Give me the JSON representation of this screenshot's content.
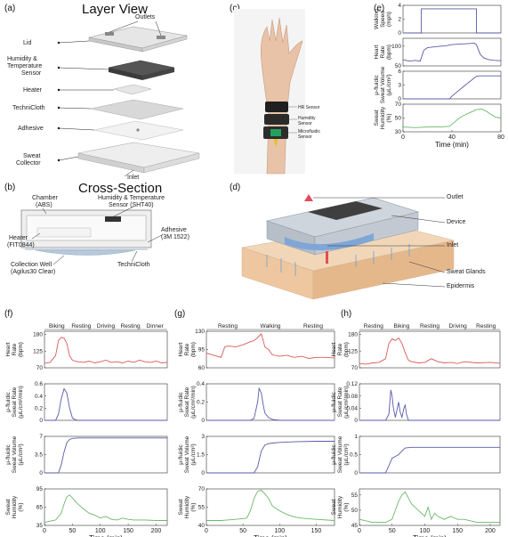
{
  "panels": {
    "a": {
      "letter": "(a)",
      "title": "Layer View",
      "labels": [
        "Outlets",
        "Lid",
        "Humidity &",
        "Temperature",
        "Sensor",
        "Heater",
        "TechniCloth",
        "Adhesive",
        "Sweat",
        "Collector",
        "Inlet"
      ]
    },
    "b": {
      "letter": "(b)",
      "title": "Cross-Section",
      "labels": [
        "Chamber",
        "(ABS)",
        "Humidity & Temperature",
        "Sensor (SHT40)",
        "Heater",
        "(FIT0844)",
        "Adhesive",
        "(3M 1522)",
        "Collection Well",
        "(Agilus30 Clear)",
        "TechniCloth"
      ]
    },
    "c": {
      "letter": "(c)",
      "labels": [
        "HR Sensor",
        "Humidity",
        "Sensor",
        "Microfluidic",
        "Sensor"
      ]
    },
    "d": {
      "letter": "(d)",
      "labels": [
        "Outlet",
        "Device",
        "Inlet",
        "Sweat Glands",
        "Epidermis"
      ]
    },
    "e": {
      "letter": "(e)"
    },
    "f": {
      "letter": "(f)",
      "activities": [
        "Biking",
        "Resting",
        "Driving",
        "Resting",
        "Dinner"
      ]
    },
    "g": {
      "letter": "(g)",
      "activities": [
        "Resting",
        "Walking",
        "Resting"
      ]
    },
    "h": {
      "letter": "(h)",
      "activities": [
        "Resting",
        "Biking",
        "Resting",
        "Driving",
        "Resting"
      ]
    }
  },
  "chart_data": [
    {
      "type": "line",
      "panel": "e",
      "xlabel": "Time (min)",
      "xlim": [
        0,
        80
      ],
      "xticks": [
        "0",
        "40",
        "80"
      ],
      "series": [
        {
          "ylabel": [
            "Walking",
            "Speed",
            "(mph)"
          ],
          "ylim": [
            0,
            4
          ],
          "yticks": [
            "0",
            "2",
            "4"
          ],
          "color": "#5a5aa8",
          "x": [
            0,
            15,
            15,
            60,
            60,
            80
          ],
          "y": [
            0,
            0,
            3.5,
            3.5,
            0,
            0
          ]
        },
        {
          "ylabel": [
            "Heart",
            "Rate",
            "(bpm)"
          ],
          "ylim": [
            50,
            120
          ],
          "yticks": [
            "50",
            "100"
          ],
          "color": "#5a5aa8",
          "x": [
            0,
            5,
            10,
            14,
            17,
            20,
            25,
            30,
            35,
            40,
            45,
            50,
            55,
            58,
            60,
            63,
            66,
            70,
            75,
            80
          ],
          "y": [
            66,
            62,
            64,
            62,
            90,
            96,
            98,
            100,
            101,
            104,
            105,
            106,
            107,
            108,
            104,
            80,
            70,
            66,
            64,
            63
          ]
        },
        {
          "ylabel": [
            "μ-fluidic",
            "Sweat Volume",
            "(μL/cm²)"
          ],
          "ylim": [
            0,
            6
          ],
          "yticks": [
            "0",
            "3",
            "6"
          ],
          "color": "#5a5aa8",
          "x": [
            0,
            38,
            40,
            50,
            60,
            62,
            80
          ],
          "y": [
            0,
            0,
            0.6,
            2.8,
            4.9,
            5.0,
            5.0
          ]
        },
        {
          "ylabel": [
            "Sweat",
            "Humidity",
            "(%)"
          ],
          "ylim": [
            30,
            70
          ],
          "yticks": [
            "30",
            "50",
            "70"
          ],
          "color": "#6ab86a",
          "x": [
            0,
            10,
            20,
            30,
            38,
            42,
            46,
            50,
            55,
            60,
            64,
            68,
            72,
            76,
            80
          ],
          "y": [
            37,
            36,
            37,
            37,
            38,
            44,
            50,
            54,
            58,
            62,
            63,
            60,
            55,
            51,
            50
          ]
        }
      ]
    },
    {
      "type": "line",
      "panel": "f",
      "xlabel": "Time (min)",
      "xlim": [
        0,
        220
      ],
      "xticks": [
        "0",
        "50",
        "100",
        "150",
        "200"
      ],
      "series": [
        {
          "ylabel": [
            "Heart",
            "Rate",
            "(bpm)"
          ],
          "ylim": [
            70,
            190
          ],
          "yticks": [
            "70",
            "125",
            "180"
          ],
          "color": "#d85a5a",
          "x": [
            0,
            10,
            20,
            25,
            30,
            35,
            40,
            45,
            50,
            55,
            60,
            70,
            80,
            90,
            100,
            110,
            120,
            130,
            140,
            150,
            160,
            170,
            180,
            190,
            200,
            210,
            220
          ],
          "y": [
            85,
            88,
            110,
            160,
            170,
            168,
            150,
            110,
            95,
            92,
            90,
            88,
            92,
            86,
            90,
            95,
            88,
            90,
            86,
            92,
            88,
            95,
            90,
            88,
            92,
            86,
            88
          ]
        },
        {
          "ylabel": [
            "μ-fluidic",
            "Sweat Rate",
            "(μL/cm²/min)"
          ],
          "ylim": [
            0,
            0.6
          ],
          "yticks": [
            "0",
            "0.2",
            "0.4",
            "0.6"
          ],
          "color": "#5a5aa8",
          "x": [
            0,
            20,
            25,
            30,
            35,
            40,
            45,
            50,
            55,
            60,
            80,
            120,
            160,
            220
          ],
          "y": [
            0,
            0,
            0.1,
            0.35,
            0.52,
            0.45,
            0.2,
            0.04,
            0.01,
            0,
            0,
            0,
            0,
            0
          ]
        },
        {
          "ylabel": [
            "μ-fluidic",
            "Sweat Volume",
            "(μL/cm²)"
          ],
          "ylim": [
            0,
            7
          ],
          "yticks": [
            "0",
            "3.5",
            "7"
          ],
          "color": "#5a5aa8",
          "x": [
            0,
            25,
            30,
            35,
            40,
            45,
            50,
            60,
            100,
            150,
            220
          ],
          "y": [
            0,
            0,
            1.5,
            4,
            5.8,
            6.4,
            6.6,
            6.7,
            6.7,
            6.7,
            6.7
          ]
        },
        {
          "ylabel": [
            "Sweat",
            "Humidity",
            "(%)"
          ],
          "ylim": [
            35,
            95
          ],
          "yticks": [
            "35",
            "65",
            "95"
          ],
          "color": "#6ab86a",
          "x": [
            0,
            10,
            20,
            30,
            35,
            40,
            45,
            50,
            60,
            70,
            80,
            90,
            100,
            110,
            120,
            130,
            140,
            150,
            160,
            180,
            200,
            220
          ],
          "y": [
            40,
            42,
            44,
            55,
            70,
            82,
            85,
            80,
            70,
            62,
            55,
            52,
            47,
            50,
            45,
            44,
            47,
            45,
            44,
            44,
            43,
            43
          ]
        }
      ]
    },
    {
      "type": "line",
      "panel": "g",
      "xlabel": "Time (min)",
      "xlim": [
        0,
        175
      ],
      "xticks": [
        "0",
        "50",
        "100",
        "150"
      ],
      "series": [
        {
          "ylabel": [
            "Heart",
            "Rate",
            "(bpm)"
          ],
          "ylim": [
            60,
            130
          ],
          "yticks": [
            "60",
            "95",
            "130"
          ],
          "color": "#d85a5a",
          "x": [
            0,
            10,
            20,
            25,
            30,
            40,
            50,
            60,
            65,
            70,
            75,
            80,
            85,
            90,
            100,
            110,
            120,
            130,
            140,
            150,
            160,
            175
          ],
          "y": [
            88,
            84,
            80,
            100,
            102,
            100,
            104,
            110,
            112,
            118,
            125,
            100,
            95,
            85,
            82,
            84,
            80,
            82,
            78,
            80,
            80,
            79
          ]
        },
        {
          "ylabel": [
            "μ-fluidic",
            "Sweat Rate",
            "(μL/cm²/min)"
          ],
          "ylim": [
            0,
            0.4
          ],
          "yticks": [
            "0",
            "0.2",
            "0.4"
          ],
          "color": "#5a5aa8",
          "x": [
            0,
            60,
            65,
            70,
            72,
            75,
            78,
            80,
            85,
            90,
            100,
            175
          ],
          "y": [
            0,
            0,
            0.02,
            0.2,
            0.35,
            0.3,
            0.15,
            0.08,
            0.03,
            0.01,
            0,
            0
          ]
        },
        {
          "ylabel": [
            "μ-fluidic",
            "Sweat Volume",
            "(μL/cm²)"
          ],
          "ylim": [
            0,
            3
          ],
          "yticks": [
            "0",
            "1.5",
            "3"
          ],
          "color": "#5a5aa8",
          "x": [
            0,
            65,
            70,
            75,
            80,
            85,
            90,
            100,
            120,
            150,
            175
          ],
          "y": [
            0,
            0,
            0.5,
            1.8,
            2.3,
            2.4,
            2.45,
            2.5,
            2.55,
            2.6,
            2.6
          ]
        },
        {
          "ylabel": [
            "Sweat",
            "Humidity",
            "(%)"
          ],
          "ylim": [
            40,
            70
          ],
          "yticks": [
            "40",
            "55",
            "70"
          ],
          "color": "#6ab86a",
          "x": [
            0,
            20,
            40,
            55,
            60,
            65,
            70,
            75,
            80,
            85,
            90,
            100,
            110,
            120,
            130,
            150,
            175
          ],
          "y": [
            44,
            44,
            45,
            46,
            52,
            62,
            68,
            69,
            66,
            62,
            56,
            52,
            49,
            47,
            46,
            45,
            44
          ]
        }
      ]
    },
    {
      "type": "line",
      "panel": "h",
      "xlabel": "Time (min)",
      "xlim": [
        0,
        215
      ],
      "xticks": [
        "0",
        "50",
        "100",
        "150",
        "200"
      ],
      "series": [
        {
          "ylabel": [
            "Heart",
            "Rate",
            "(bpm)"
          ],
          "ylim": [
            70,
            190
          ],
          "yticks": [
            "70",
            "125",
            "180"
          ],
          "color": "#d85a5a",
          "x": [
            0,
            10,
            20,
            30,
            40,
            45,
            50,
            55,
            60,
            65,
            70,
            75,
            80,
            90,
            100,
            110,
            120,
            130,
            140,
            150,
            160,
            180,
            200,
            215
          ],
          "y": [
            84,
            82,
            86,
            88,
            100,
            150,
            165,
            160,
            168,
            150,
            120,
            95,
            90,
            86,
            88,
            100,
            90,
            86,
            88,
            84,
            90,
            86,
            88,
            85
          ]
        },
        {
          "ylabel": [
            "μ-fluidic",
            "Sweat Rate",
            "(μL/cm²/min)"
          ],
          "ylim": [
            0,
            0.12
          ],
          "yticks": [
            "0",
            "0.04",
            "0.08",
            "0.12"
          ],
          "color": "#5a5aa8",
          "x": [
            0,
            40,
            45,
            48,
            50,
            52,
            55,
            58,
            60,
            62,
            65,
            68,
            70,
            72,
            75,
            80,
            215
          ],
          "y": [
            0,
            0,
            0.02,
            0.1,
            0.08,
            0.04,
            0.01,
            0.04,
            0.06,
            0.03,
            0.01,
            0.04,
            0.05,
            0.02,
            0,
            0,
            0
          ]
        },
        {
          "ylabel": [
            "μ-fluidic",
            "Sweat Volume",
            "(μL/cm²)"
          ],
          "ylim": [
            0,
            1
          ],
          "yticks": [
            "0",
            "0.5",
            "1"
          ],
          "color": "#5a5aa8",
          "x": [
            0,
            40,
            45,
            50,
            55,
            60,
            65,
            70,
            80,
            100,
            150,
            215
          ],
          "y": [
            0,
            0,
            0.2,
            0.4,
            0.45,
            0.5,
            0.6,
            0.68,
            0.7,
            0.7,
            0.7,
            0.7
          ]
        },
        {
          "ylabel": [
            "Sweat",
            "Humidity",
            "(%)"
          ],
          "ylim": [
            45,
            57
          ],
          "yticks": [
            "45",
            "50",
            "55"
          ],
          "color": "#6ab86a",
          "x": [
            0,
            20,
            40,
            50,
            55,
            60,
            65,
            70,
            75,
            80,
            90,
            100,
            105,
            110,
            115,
            120,
            130,
            140,
            150,
            160,
            180,
            200,
            215
          ],
          "y": [
            47,
            46,
            46,
            47,
            50,
            53,
            55,
            56,
            54,
            52,
            50,
            48,
            51,
            47,
            49,
            48,
            47,
            48,
            47,
            47,
            46,
            46,
            46
          ]
        }
      ]
    }
  ]
}
